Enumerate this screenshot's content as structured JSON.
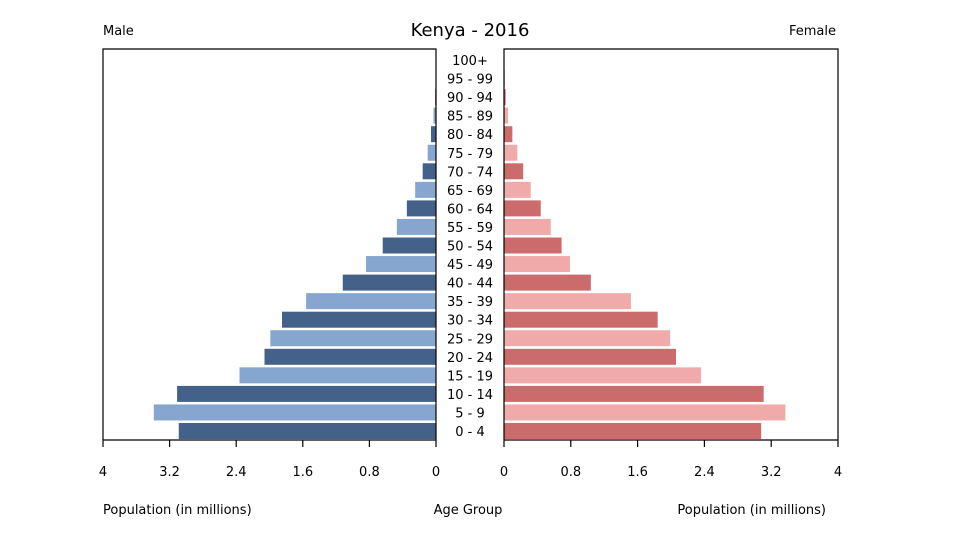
{
  "chart_data": {
    "type": "bar",
    "title": "Kenya - 2016",
    "left_label": "Male",
    "right_label": "Female",
    "center_axis_title": "Age Group",
    "left_axis_title": "Population (in millions)",
    "right_axis_title": "Population (in millions)",
    "xlim": [
      0,
      4
    ],
    "ticks": [
      0,
      0.8,
      1.6,
      2.4,
      3.2,
      4
    ],
    "left_tick_labels": [
      "4",
      "3.2",
      "2.4",
      "1.6",
      "0.8",
      "0"
    ],
    "right_tick_labels": [
      "0",
      "0.8",
      "1.6",
      "2.4",
      "3.2",
      "4"
    ],
    "categories": [
      "100+",
      "95 - 99",
      "90 - 94",
      "85 - 89",
      "80 - 84",
      "75 - 79",
      "70 - 74",
      "65 - 69",
      "60 - 64",
      "55 - 59",
      "50 - 54",
      "45 - 49",
      "40 - 44",
      "35 - 39",
      "30 - 34",
      "25 - 29",
      "20 - 24",
      "15 - 19",
      "10 - 14",
      "5 - 9",
      "0 - 4"
    ],
    "series": [
      {
        "name": "Male",
        "values": [
          0.003,
          0.006,
          0.01,
          0.03,
          0.06,
          0.1,
          0.16,
          0.25,
          0.35,
          0.47,
          0.64,
          0.84,
          1.12,
          1.56,
          1.85,
          1.99,
          2.06,
          2.36,
          3.11,
          3.39,
          3.09
        ]
      },
      {
        "name": "Female",
        "values": [
          0.005,
          0.01,
          0.02,
          0.05,
          0.1,
          0.16,
          0.23,
          0.32,
          0.44,
          0.56,
          0.69,
          0.79,
          1.04,
          1.52,
          1.84,
          1.99,
          2.06,
          2.36,
          3.11,
          3.37,
          3.08
        ]
      }
    ],
    "colors": {
      "male_dark": "#44618a",
      "male_light": "#87a6cf",
      "female_dark": "#cc6b6b",
      "female_light": "#f1aaaa",
      "frame": "#000000"
    }
  }
}
